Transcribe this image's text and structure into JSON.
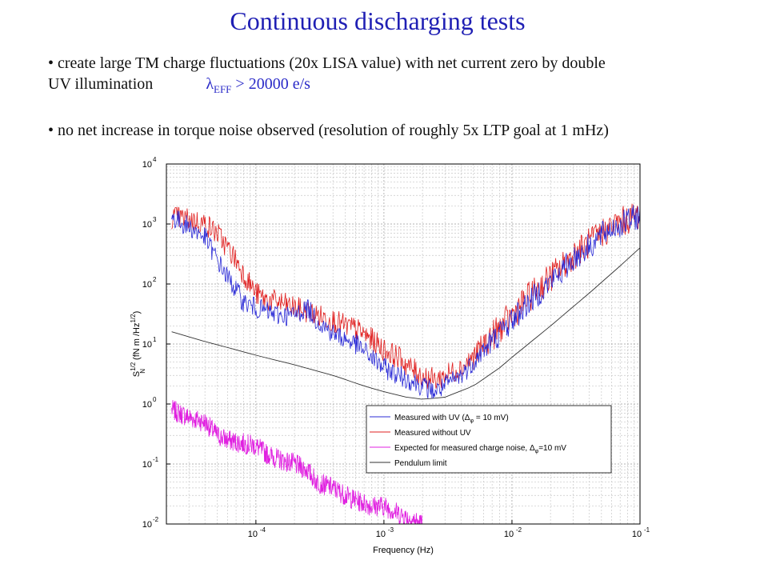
{
  "slide": {
    "title": "Continuous discharging tests",
    "bullet1_line1": "create large TM charge fluctuations (20x LISA value) with net current zero by double",
    "bullet1_line2": "UV illumination",
    "lambda_symbol": "λ",
    "lambda_sub": "EFF",
    "lambda_value": " > 20000 e/s",
    "bullet2": "no net increase in torque noise observed (resolution of roughly 5x LTP goal at 1 mHz)"
  },
  "chart_data": {
    "type": "line",
    "xscale": "log",
    "yscale": "log",
    "xlim": [
      2e-05,
      0.1
    ],
    "ylim": [
      0.01,
      10000
    ],
    "xlabel": "Frequency (Hz)",
    "ylabel": "S_N^{1/2} (fN m /Hz^{1/2})",
    "xticks": [
      {
        "value": 0.0001,
        "base": "10",
        "exp": "-4"
      },
      {
        "value": 0.001,
        "base": "10",
        "exp": "-3"
      },
      {
        "value": 0.01,
        "base": "10",
        "exp": "-2"
      },
      {
        "value": 0.1,
        "base": "10",
        "exp": "-1"
      }
    ],
    "yticks": [
      {
        "value": 0.01,
        "base": "10",
        "exp": "-2"
      },
      {
        "value": 0.1,
        "base": "10",
        "exp": "-1"
      },
      {
        "value": 1,
        "base": "10",
        "exp": "0"
      },
      {
        "value": 10,
        "base": "10",
        "exp": "1"
      },
      {
        "value": 100,
        "base": "10",
        "exp": "2"
      },
      {
        "value": 1000,
        "base": "10",
        "exp": "3"
      },
      {
        "value": 10000,
        "base": "10",
        "exp": "4"
      }
    ],
    "grid": true,
    "legend_position": "lower-right",
    "series": [
      {
        "name": "Measured with UV (Δφ = 10 mV)",
        "legend_main": "Measured with UV (Δ",
        "legend_sub": "φ",
        "legend_tail": " = 10 mV)",
        "color": "#2b2bd6",
        "x": [
          2.2e-05,
          3e-05,
          4e-05,
          5e-05,
          6e-05,
          7e-05,
          8e-05,
          0.0001,
          0.00012,
          0.00015,
          0.0002,
          0.00025,
          0.0003,
          0.0004,
          0.0005,
          0.0006,
          0.0008,
          0.001,
          0.0013,
          0.0016,
          0.002,
          0.0025,
          0.003,
          0.004,
          0.005,
          0.006,
          0.008,
          0.01,
          0.013,
          0.016,
          0.02,
          0.025,
          0.03,
          0.04,
          0.05,
          0.06,
          0.08,
          0.1
        ],
        "y": [
          1300,
          900,
          600,
          250,
          130,
          80,
          50,
          40,
          35,
          30,
          30,
          40,
          25,
          15,
          12,
          10,
          6,
          4,
          3,
          2.5,
          2,
          1.6,
          2,
          3,
          5,
          8,
          15,
          25,
          45,
          70,
          110,
          170,
          260,
          420,
          650,
          850,
          1100,
          1400
        ]
      },
      {
        "name": "Measured without UV",
        "color": "#e02020",
        "x": [
          2.2e-05,
          3e-05,
          4e-05,
          5e-05,
          6e-05,
          7e-05,
          8e-05,
          0.0001,
          0.00012,
          0.00015,
          0.0002,
          0.00025,
          0.0003,
          0.0004,
          0.0005,
          0.0006,
          0.0008,
          0.001,
          0.0013,
          0.0016,
          0.002,
          0.0025,
          0.003,
          0.004,
          0.005,
          0.006,
          0.008,
          0.01,
          0.013,
          0.016,
          0.02,
          0.025,
          0.03,
          0.04,
          0.05,
          0.06,
          0.08,
          0.1
        ],
        "y": [
          1300,
          1200,
          1000,
          700,
          400,
          250,
          150,
          70,
          55,
          50,
          40,
          35,
          30,
          25,
          20,
          18,
          12,
          8,
          6,
          4,
          3,
          2.5,
          3,
          4,
          6,
          10,
          18,
          30,
          55,
          85,
          130,
          200,
          300,
          480,
          700,
          900,
          1200,
          1500
        ]
      },
      {
        "name": "Expected for measured charge noise, Δφ=10 mV",
        "legend_main": "Expected for measured charge noise, Δ",
        "legend_sub": "φ",
        "legend_tail": "=10 mV",
        "color": "#e020e0",
        "x": [
          2.2e-05,
          3e-05,
          4e-05,
          5e-05,
          6e-05,
          8e-05,
          0.0001,
          0.00012,
          0.00015,
          0.0002,
          0.00025,
          0.0003,
          0.0004,
          0.0005,
          0.0006,
          0.0008,
          0.001,
          0.0013,
          0.0016,
          0.002
        ],
        "y": [
          0.8,
          0.6,
          0.5,
          0.3,
          0.25,
          0.22,
          0.2,
          0.15,
          0.12,
          0.1,
          0.08,
          0.05,
          0.04,
          0.03,
          0.025,
          0.02,
          0.02,
          0.015,
          0.012,
          0.01
        ]
      },
      {
        "name": "Pendulum limit",
        "color": "#333333",
        "x": [
          2.2e-05,
          4e-05,
          7e-05,
          0.0001,
          0.0002,
          0.0004,
          0.0007,
          0.001,
          0.0015,
          0.002,
          0.003,
          0.005,
          0.008,
          0.01,
          0.02,
          0.04,
          0.07,
          0.1
        ],
        "y": [
          16,
          11,
          8,
          6.5,
          4.5,
          3,
          2,
          1.6,
          1.3,
          1.2,
          1.3,
          2,
          4,
          6,
          20,
          70,
          200,
          400
        ]
      }
    ]
  }
}
